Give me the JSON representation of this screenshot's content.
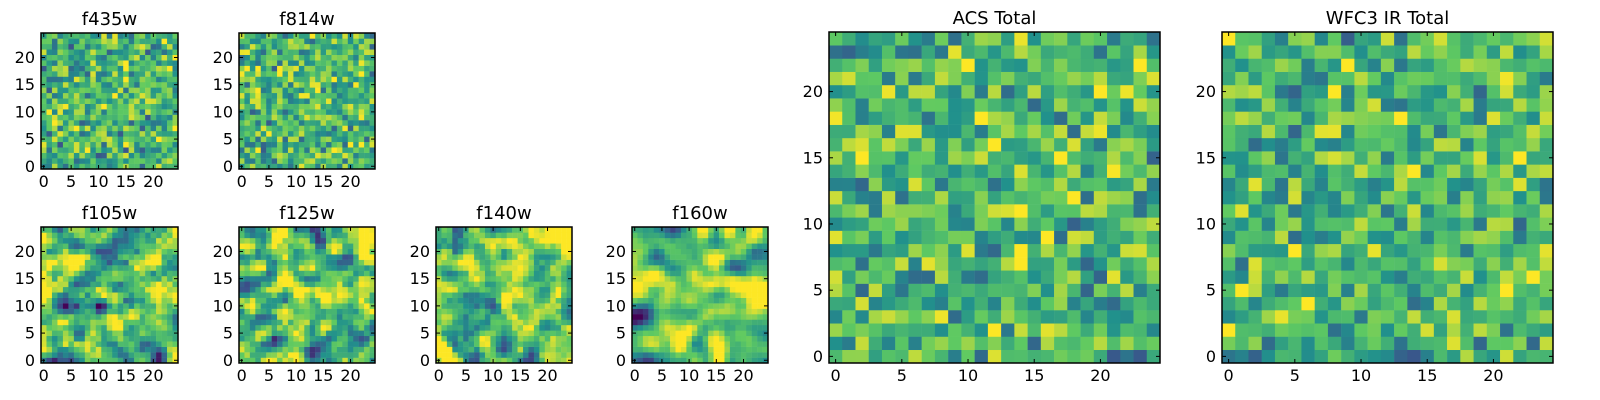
{
  "figure": {
    "colormap": "viridis",
    "colormap_stops": [
      "#440154",
      "#3b528b",
      "#21918c",
      "#5ec962",
      "#fde725"
    ]
  },
  "chart_data": [
    {
      "type": "heatmap",
      "title": "f435w",
      "grid_size": 25,
      "xlim": [
        0,
        24
      ],
      "ylim": [
        0,
        24
      ],
      "xticks": [
        0,
        5,
        10,
        15,
        20
      ],
      "yticks": [
        0,
        5,
        10,
        15,
        20
      ],
      "seed": 11,
      "texture": "noise",
      "smooth": 0,
      "mean": 0.66,
      "spread": 0.17,
      "lowfreq": 0.0
    },
    {
      "type": "heatmap",
      "title": "f814w",
      "grid_size": 25,
      "xlim": [
        0,
        24
      ],
      "ylim": [
        0,
        24
      ],
      "xticks": [
        0,
        5,
        10,
        15,
        20
      ],
      "yticks": [
        0,
        5,
        10,
        15,
        20
      ],
      "seed": 23,
      "texture": "noise",
      "smooth": 0,
      "mean": 0.67,
      "spread": 0.17,
      "lowfreq": 0.0
    },
    {
      "type": "heatmap",
      "title": "f105w",
      "grid_size": 25,
      "xlim": [
        0,
        24
      ],
      "ylim": [
        0,
        24
      ],
      "xticks": [
        0,
        5,
        10,
        15,
        20
      ],
      "yticks": [
        0,
        5,
        10,
        15,
        20
      ],
      "seed": 37,
      "texture": "smooth",
      "smooth": 1,
      "mean": 0.68,
      "spread": 0.21,
      "lowfreq": 0.12
    },
    {
      "type": "heatmap",
      "title": "f125w",
      "grid_size": 25,
      "xlim": [
        0,
        24
      ],
      "ylim": [
        0,
        24
      ],
      "xticks": [
        0,
        5,
        10,
        15,
        20
      ],
      "yticks": [
        0,
        5,
        10,
        15,
        20
      ],
      "seed": 41,
      "texture": "smooth",
      "smooth": 1,
      "mean": 0.7,
      "spread": 0.21,
      "lowfreq": 0.12
    },
    {
      "type": "heatmap",
      "title": "f140w",
      "grid_size": 25,
      "xlim": [
        0,
        24
      ],
      "ylim": [
        0,
        24
      ],
      "xticks": [
        0,
        5,
        10,
        15,
        20
      ],
      "yticks": [
        0,
        5,
        10,
        15,
        20
      ],
      "seed": 59,
      "texture": "smooth",
      "smooth": 1,
      "mean": 0.73,
      "spread": 0.19,
      "lowfreq": 0.14
    },
    {
      "type": "heatmap",
      "title": "f160w",
      "grid_size": 25,
      "xlim": [
        0,
        24
      ],
      "ylim": [
        0,
        24
      ],
      "xticks": [
        0,
        5,
        10,
        15,
        20
      ],
      "yticks": [
        0,
        5,
        10,
        15,
        20
      ],
      "seed": 67,
      "texture": "smooth",
      "smooth": 2,
      "mean": 0.74,
      "spread": 0.2,
      "lowfreq": 0.16
    },
    {
      "type": "heatmap",
      "title": "ACS Total",
      "grid_size": 25,
      "xlim": [
        0,
        24
      ],
      "ylim": [
        0,
        24
      ],
      "xticks": [
        0,
        5,
        10,
        15,
        20
      ],
      "yticks": [
        0,
        5,
        10,
        15,
        20
      ],
      "seed": 83,
      "texture": "noise",
      "smooth": 0,
      "mean": 0.67,
      "spread": 0.17,
      "lowfreq": 0.0
    },
    {
      "type": "heatmap",
      "title": "WFC3 IR Total",
      "grid_size": 25,
      "xlim": [
        0,
        24
      ],
      "ylim": [
        0,
        24
      ],
      "xticks": [
        0,
        5,
        10,
        15,
        20
      ],
      "yticks": [
        0,
        5,
        10,
        15,
        20
      ],
      "seed": 97,
      "texture": "noise",
      "smooth": 0,
      "mean": 0.67,
      "spread": 0.16,
      "lowfreq": 0.05
    }
  ]
}
